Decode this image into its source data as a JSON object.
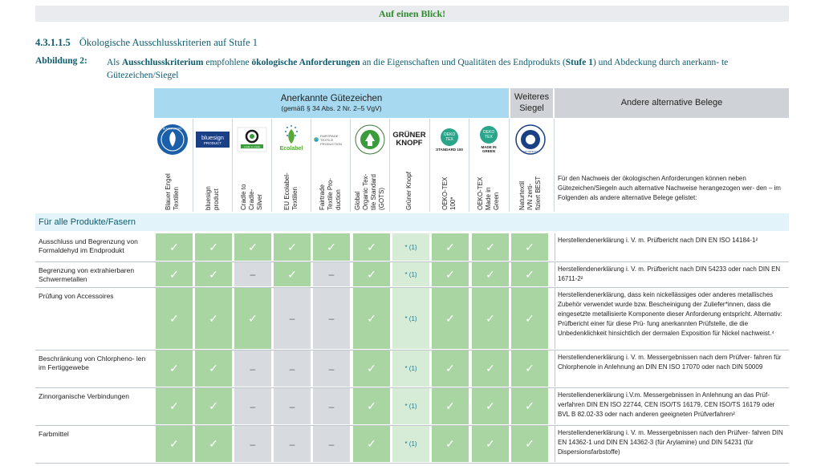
{
  "banner": "Auf einen Blick!",
  "heading": {
    "number": "4.3.1.1.5",
    "title": "Ökologische Ausschlusskriterien auf Stufe 1"
  },
  "figure": {
    "label": "Abbildung 2:",
    "text_parts": [
      "Als ",
      "Ausschlusskriterium",
      " empfohlene ",
      "ökologische Anforderungen",
      " an die Eigenschaften und Qualitäten des Endprodukts (",
      "Stufe 1",
      ") und Abdeckung durch anerkann- te Gütezeichen/Siegel"
    ]
  },
  "header": {
    "group1_title": "Anerkannte Gütezeichen",
    "group1_sub": "(gemäß § 34 Abs. 2 Nr. 2–5 VgV)",
    "group2_title": "Weiteres Siegel",
    "group3_title": "Andere alternative Belege"
  },
  "logos": {
    "blauer_engel": "BLAUER ENGEL",
    "bluesign_1": "bluesign",
    "bluesign_2": "PRODUCT",
    "c2c": "cradle to cradle",
    "ecolabel": "Ecolabel",
    "fairtrade": "FAIRTRADE TEXTILE PRODUCTION",
    "gruener_1": "GRÜNER",
    "gruener_2": "KNOPF",
    "oeko_1": "OEKO TEX",
    "oeko_1b": "STANDARD 100",
    "oeko_2": "OEKO TEX",
    "oeko_2b": "MADE IN GREEN",
    "ivn": "NATURTEXTIL"
  },
  "columns": [
    "Blauer Engel\nTextilien",
    "bluesign\nproduct",
    "Cradle to\nCradle-\nSilver",
    "EU Ecolabel-\nTextilien",
    "Fairtrade\nTextile Pro-\nduction",
    "Global\nOrganic Tex-\ntile Standard\n(GOTS)",
    "Grüner Knopf",
    "OEKO-TEX\n100*",
    "OEKO-TEX\nMade in\nGreen",
    "Naturtextil\nIVN zerti-\nfiziert BEST"
  ],
  "alt_note": "Für den Nachweis der ökologischen Anforderungen können neben Gütezeichen/Siegeln auch alternative Nachweise herangezogen wer- den – im Folgenden als andere alternative Belege gelistet:",
  "section": "Für alle Produkte/Fasern",
  "symbols": {
    "ok": "✓",
    "na": "–",
    "star": "* (1)"
  },
  "rows": [
    {
      "label": "Ausschluss und Begrenzung von Formaldehyd im Endprodukt",
      "cells": [
        "ok",
        "ok",
        "ok",
        "ok",
        "ok",
        "ok",
        "star",
        "ok",
        "ok",
        "ok"
      ],
      "evidence": "Herstellendenerklärung i. V. m. Prüfbericht nach DIN EN ISO 14184-1²"
    },
    {
      "label": "Begrenzung von extrahierbaren Schwermetallen",
      "cells": [
        "ok",
        "ok",
        "na",
        "ok",
        "na",
        "ok",
        "star",
        "ok",
        "ok",
        "ok"
      ],
      "evidence": "Herstellendenerklärung i. V. m. Prüfbericht nach DIN 54233 oder nach DIN EN 16711-2²"
    },
    {
      "label": "Prüfung von Accessoires",
      "cells": [
        "ok",
        "ok",
        "ok",
        "na",
        "na",
        "ok",
        "star",
        "ok",
        "ok",
        "ok"
      ],
      "evidence": "Herstellendenerklärung, dass kein nickellässiges oder anderes metallisches Zubehör verwendet wurde bzw. Bescheinigung der Zuliefer*innen, dass die eingesetzte metallisierte Komponente dieser Anforderung entspricht. Alternativ: Prüfbericht einer für diese Prü- fung anerkannten Prüfstelle, die die Unbedenklichkeit hinsichtlich der dermalen Exposition für Nickel nachweist.⁴"
    },
    {
      "label": "Beschränkung von Chlorpheno- len im Fertiggewebe",
      "cells": [
        "ok",
        "ok",
        "na",
        "na",
        "na",
        "ok",
        "star",
        "ok",
        "ok",
        "ok"
      ],
      "evidence": "Herstellendenerklärung i. V. m. Messergebnissen nach dem Prüfver- fahren für Chlorphenole in Anlehnung an DIN EN ISO 17070 oder nach DIN 50009"
    },
    {
      "label": "Zinnorganische Verbindungen",
      "cells": [
        "ok",
        "ok",
        "na",
        "na",
        "na",
        "ok",
        "star",
        "ok",
        "ok",
        "ok"
      ],
      "evidence": "Herstellendenerklärung i.V.m. Messergebnissen in Anlehnung an das Prüf- verfahren DIN EN ISO 22744, CEN ISO/TS 16179, CEN ISO/TS 16179 oder BVL B 82.02-33 oder nach anderen geeigneten Prüfverfahren²"
    },
    {
      "label": "Farbmittel",
      "cells": [
        "ok",
        "ok",
        "na",
        "na",
        "na",
        "ok",
        "star",
        "ok",
        "ok",
        "ok"
      ],
      "evidence": "Herstellendenerklärung i. V. m. Messergebnissen nach den Prüfver- fahren DIN EN 14362-1 und DIN EN 14362-3 (für Arylamine) und DIN 54231 (für Dispersionsfarbstoffe)"
    }
  ]
}
